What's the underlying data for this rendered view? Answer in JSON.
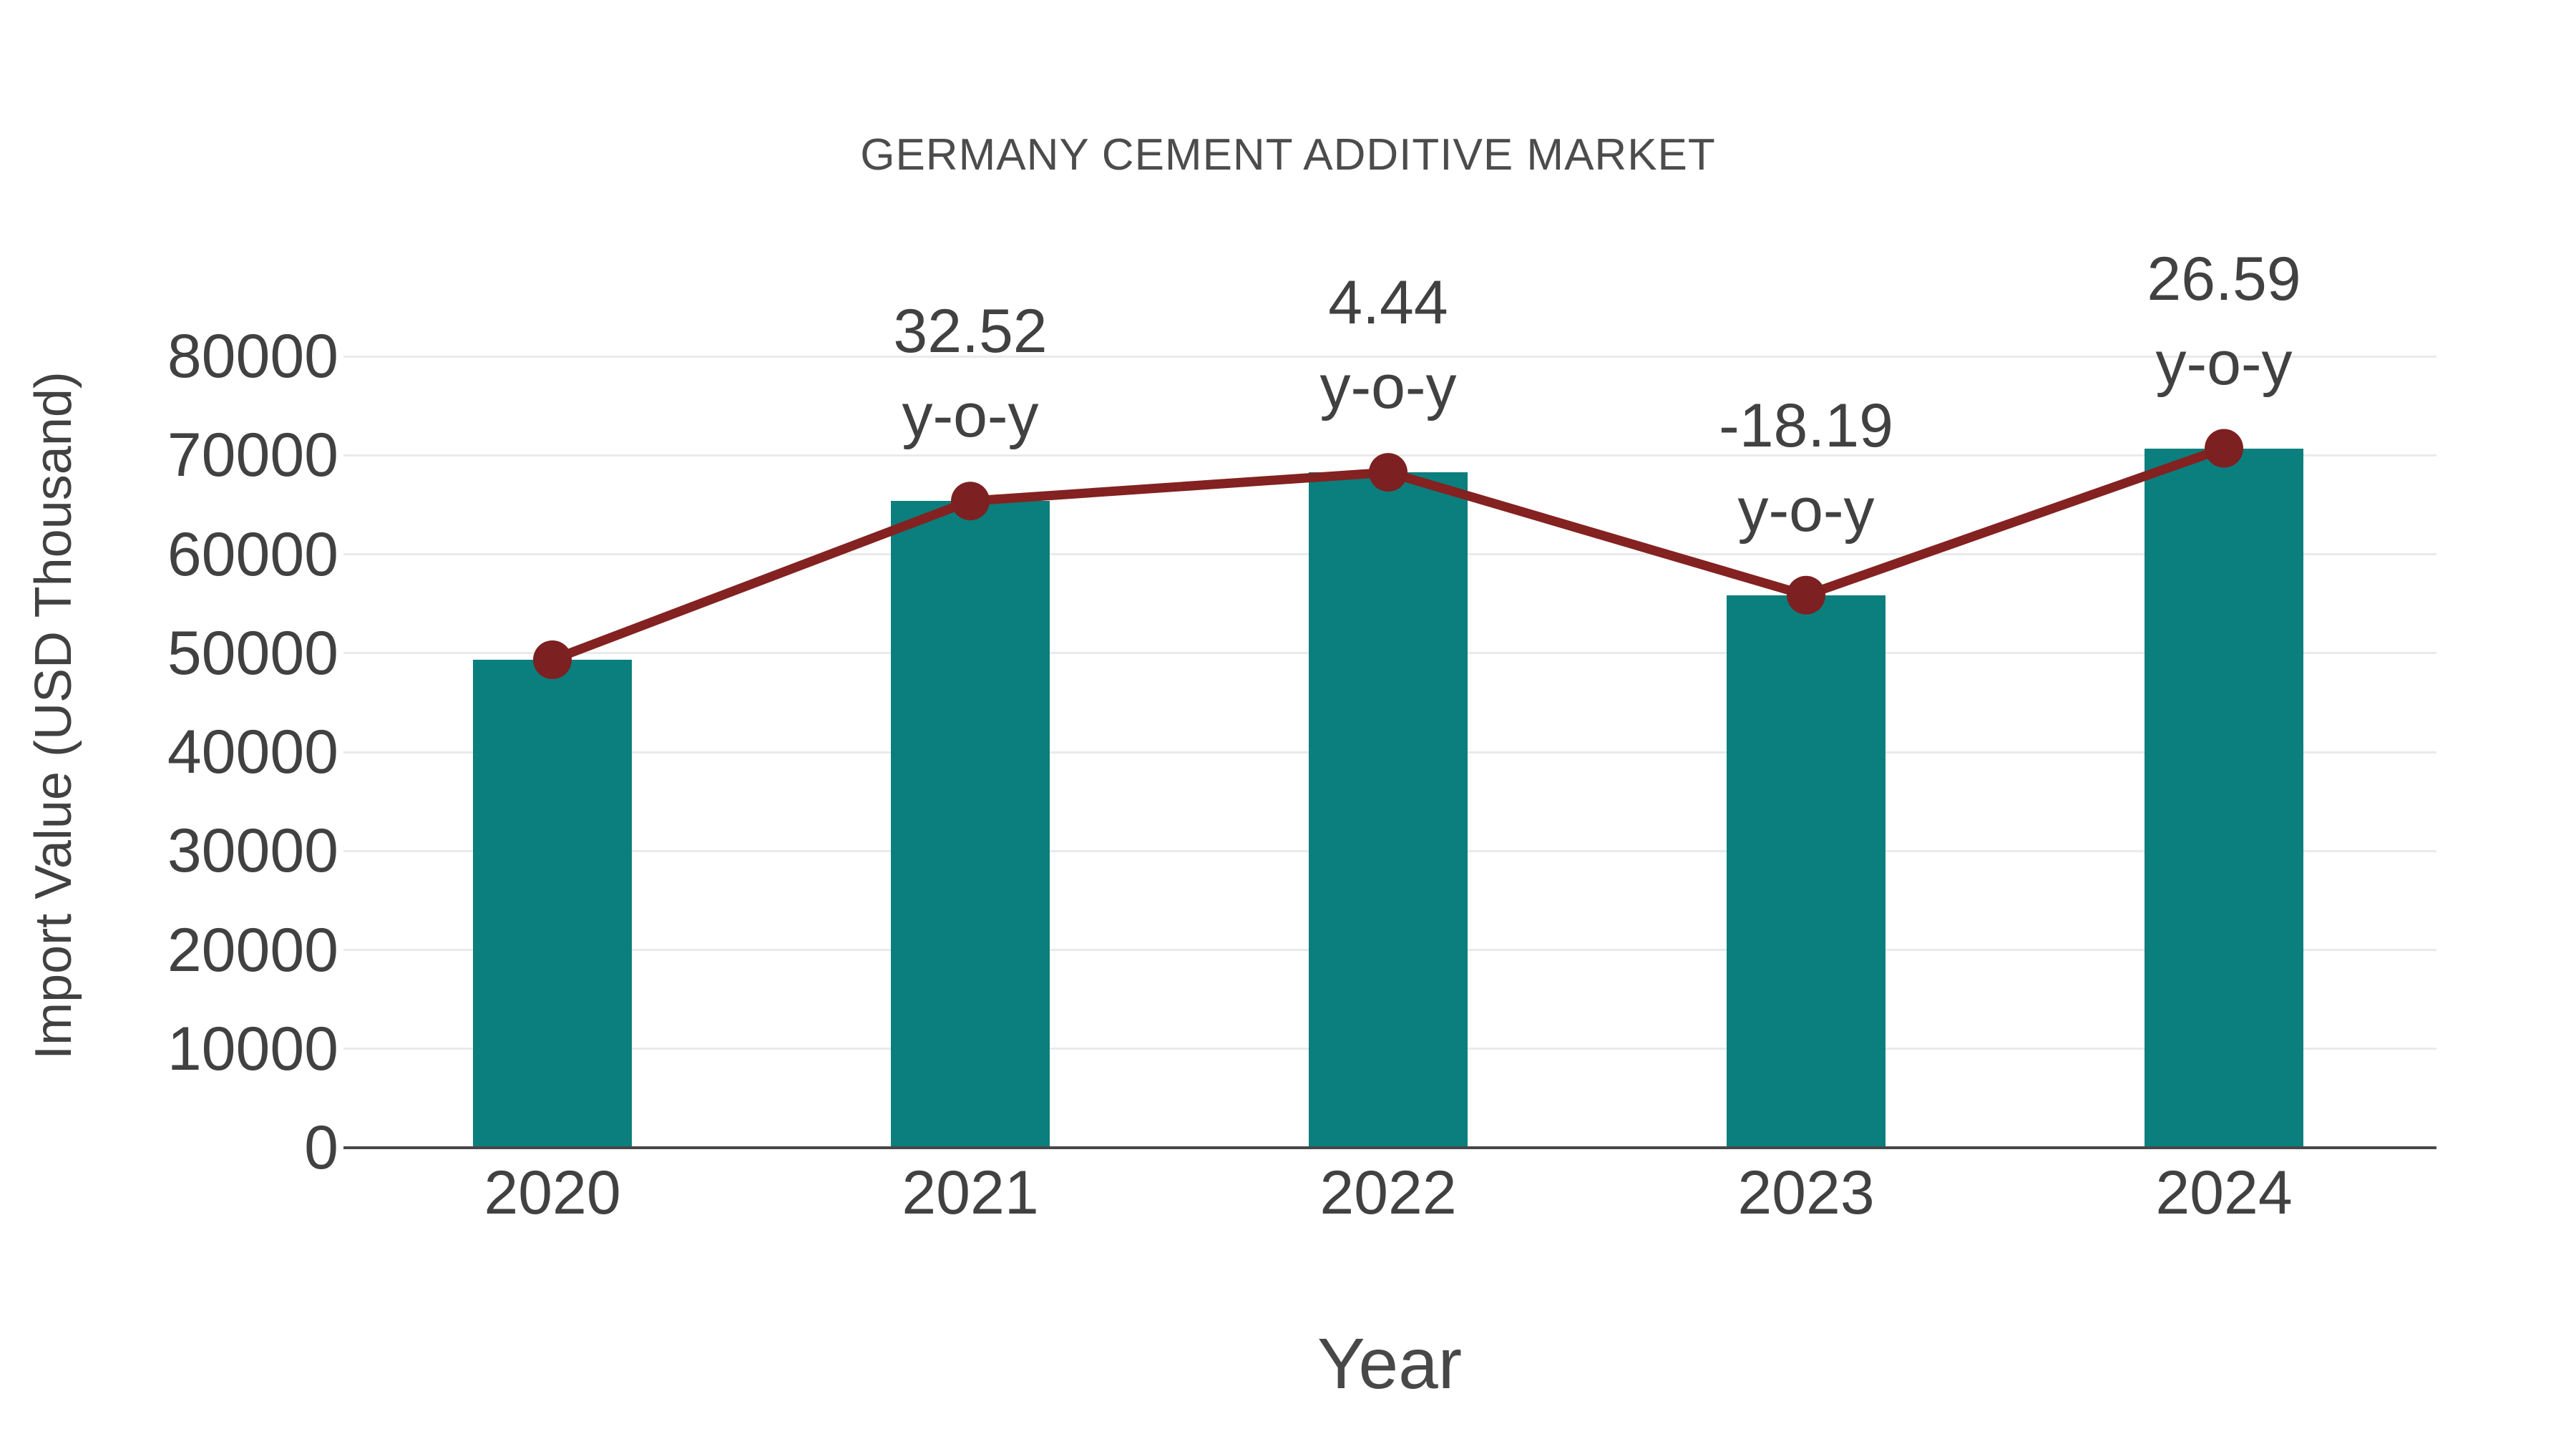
{
  "chart_data": {
    "type": "bar",
    "title": "GERMANY CEMENT ADDITIVE MARKET",
    "xlabel": "Year",
    "ylabel": "Import Value (USD Thousand)",
    "categories": [
      "2020",
      "2021",
      "2022",
      "2023",
      "2024"
    ],
    "series": [
      {
        "name": "Import Value (USD Thousand)",
        "type": "bar",
        "values": [
          49330,
          65372,
          68275,
          55856,
          70708
        ]
      },
      {
        "name": "y-o-y trend line",
        "type": "line",
        "values": [
          49330,
          65372,
          68275,
          55856,
          70708
        ]
      }
    ],
    "annotations": [
      {
        "category": "2021",
        "value_label": "32.52",
        "suffix_label": "y-o-y"
      },
      {
        "category": "2022",
        "value_label": "4.44",
        "suffix_label": "y-o-y"
      },
      {
        "category": "2023",
        "value_label": "-18.19",
        "suffix_label": "y-o-y"
      },
      {
        "category": "2024",
        "value_label": "26.59",
        "suffix_label": "y-o-y"
      }
    ],
    "yticks": [
      0,
      10000,
      20000,
      30000,
      40000,
      50000,
      60000,
      70000,
      80000
    ],
    "ylim": [
      0,
      85000
    ],
    "grid": true,
    "legend": false,
    "colors": {
      "bar": "#0a7f7d",
      "line": "#832221",
      "marker": "#7d2022",
      "title_text": "#4c4c4c",
      "tick_text": "#414141",
      "axis_line": "#474747",
      "gridline": "#eaeaea",
      "background": "#ffffff"
    }
  }
}
